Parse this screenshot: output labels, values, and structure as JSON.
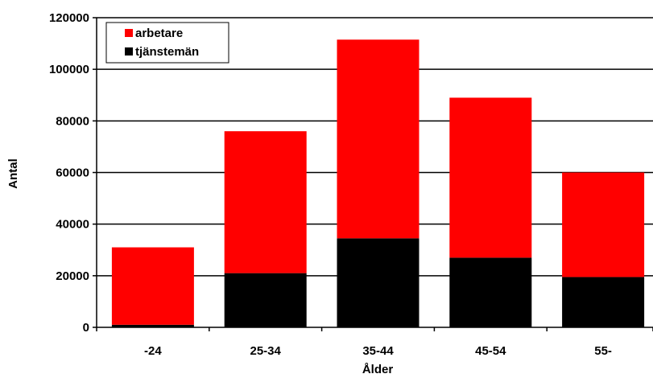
{
  "chart_data": {
    "type": "bar",
    "stacked": true,
    "categories": [
      "-24",
      "25-34",
      "35-44",
      "45-54",
      "55-"
    ],
    "series": [
      {
        "name": "tjänstemän",
        "color": "#000000",
        "values": [
          1000,
          21000,
          34500,
          27000,
          19500
        ]
      },
      {
        "name": "arbetare",
        "color": "#ff0000",
        "values": [
          30000,
          55000,
          77000,
          62000,
          40500
        ]
      }
    ],
    "title": "",
    "xlabel": "Ålder",
    "ylabel": "Antal",
    "ylim": [
      0,
      120000
    ],
    "yticks": [
      0,
      20000,
      40000,
      60000,
      80000,
      100000,
      120000
    ],
    "ytick_labels": [
      "0",
      "20000",
      "40000",
      "60000",
      "80000",
      "100000",
      "120000"
    ],
    "grid": "horizontal",
    "legend": {
      "position": "top-left",
      "entries": [
        "arbetare",
        "tjänstemän"
      ]
    }
  }
}
